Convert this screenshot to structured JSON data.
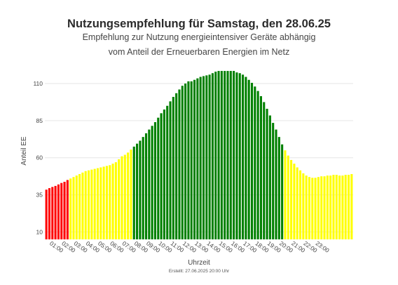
{
  "header": {
    "title": "Nutzungsempfehlung für Samstag, den 28.06.25",
    "subtitle_line1": "Empfehlung zur Nutzung energieintensiver Geräte abhängig",
    "subtitle_line2": "vom Anteil der Erneuerbaren Energien im Netz"
  },
  "footer": {
    "created": "Erstellt: 27.06.2025 20:00 Uhr"
  },
  "colors": {
    "red": "#ff0000",
    "yellow": "#ffff00",
    "green": "#008000",
    "grid": "#e6e6e6",
    "axis_text": "#444444"
  },
  "chart_data": {
    "type": "bar",
    "title": "",
    "xlabel": "Uhrzeit",
    "ylabel": "Anteil EE",
    "ylim": [
      5,
      119
    ],
    "yticks": [
      10,
      35,
      60,
      85,
      110
    ],
    "grid": true,
    "legend": "none",
    "x_tick_labels": [
      "01:00",
      "02:00",
      "03:00",
      "04:00",
      "05:00",
      "06:00",
      "07:00",
      "08:00",
      "09:00",
      "10:00",
      "11:00",
      "12:00",
      "13:00",
      "14:00",
      "15:00",
      "16:00",
      "17:00",
      "18:00",
      "19:00",
      "20:00",
      "21:00",
      "22:00",
      "23:00"
    ],
    "resolution": "15 min",
    "bars": [
      {
        "value": 38.5,
        "color": "red"
      },
      {
        "value": 39.5,
        "color": "red"
      },
      {
        "value": 40.3,
        "color": "red"
      },
      {
        "value": 41.0,
        "color": "red"
      },
      {
        "value": 42.0,
        "color": "red"
      },
      {
        "value": 43.0,
        "color": "red"
      },
      {
        "value": 43.8,
        "color": "red"
      },
      {
        "value": 45.0,
        "color": "red"
      },
      {
        "value": 46.0,
        "color": "yellow"
      },
      {
        "value": 47.0,
        "color": "yellow"
      },
      {
        "value": 48.0,
        "color": "yellow"
      },
      {
        "value": 49.0,
        "color": "yellow"
      },
      {
        "value": 50.0,
        "color": "yellow"
      },
      {
        "value": 51.0,
        "color": "yellow"
      },
      {
        "value": 51.5,
        "color": "yellow"
      },
      {
        "value": 52.0,
        "color": "yellow"
      },
      {
        "value": 52.5,
        "color": "yellow"
      },
      {
        "value": 53.0,
        "color": "yellow"
      },
      {
        "value": 53.5,
        "color": "yellow"
      },
      {
        "value": 54.0,
        "color": "yellow"
      },
      {
        "value": 54.5,
        "color": "yellow"
      },
      {
        "value": 55.0,
        "color": "yellow"
      },
      {
        "value": 56.0,
        "color": "yellow"
      },
      {
        "value": 57.0,
        "color": "yellow"
      },
      {
        "value": 59.0,
        "color": "yellow"
      },
      {
        "value": 61.0,
        "color": "yellow"
      },
      {
        "value": 62.0,
        "color": "yellow"
      },
      {
        "value": 63.5,
        "color": "yellow"
      },
      {
        "value": 65.5,
        "color": "yellow"
      },
      {
        "value": 67.5,
        "color": "green"
      },
      {
        "value": 69.5,
        "color": "green"
      },
      {
        "value": 71.5,
        "color": "green"
      },
      {
        "value": 74.0,
        "color": "green"
      },
      {
        "value": 76.5,
        "color": "green"
      },
      {
        "value": 79.0,
        "color": "green"
      },
      {
        "value": 81.5,
        "color": "green"
      },
      {
        "value": 84.0,
        "color": "green"
      },
      {
        "value": 87.0,
        "color": "green"
      },
      {
        "value": 90.0,
        "color": "green"
      },
      {
        "value": 92.5,
        "color": "green"
      },
      {
        "value": 95.0,
        "color": "green"
      },
      {
        "value": 98.0,
        "color": "green"
      },
      {
        "value": 101.0,
        "color": "green"
      },
      {
        "value": 103.5,
        "color": "green"
      },
      {
        "value": 106.0,
        "color": "green"
      },
      {
        "value": 108.5,
        "color": "green"
      },
      {
        "value": 110.0,
        "color": "green"
      },
      {
        "value": 111.5,
        "color": "green"
      },
      {
        "value": 111.5,
        "color": "green"
      },
      {
        "value": 112.5,
        "color": "green"
      },
      {
        "value": 113.5,
        "color": "green"
      },
      {
        "value": 114.5,
        "color": "green"
      },
      {
        "value": 115.0,
        "color": "green"
      },
      {
        "value": 115.5,
        "color": "green"
      },
      {
        "value": 116.0,
        "color": "green"
      },
      {
        "value": 117.0,
        "color": "green"
      },
      {
        "value": 118.0,
        "color": "green"
      },
      {
        "value": 118.5,
        "color": "green"
      },
      {
        "value": 118.5,
        "color": "green"
      },
      {
        "value": 118.5,
        "color": "green"
      },
      {
        "value": 118.5,
        "color": "green"
      },
      {
        "value": 118.5,
        "color": "green"
      },
      {
        "value": 118.5,
        "color": "green"
      },
      {
        "value": 117.5,
        "color": "green"
      },
      {
        "value": 117.0,
        "color": "green"
      },
      {
        "value": 116.0,
        "color": "green"
      },
      {
        "value": 114.5,
        "color": "green"
      },
      {
        "value": 112.5,
        "color": "green"
      },
      {
        "value": 110.5,
        "color": "green"
      },
      {
        "value": 108.0,
        "color": "green"
      },
      {
        "value": 105.0,
        "color": "green"
      },
      {
        "value": 101.5,
        "color": "green"
      },
      {
        "value": 97.5,
        "color": "green"
      },
      {
        "value": 93.0,
        "color": "green"
      },
      {
        "value": 88.5,
        "color": "green"
      },
      {
        "value": 83.5,
        "color": "green"
      },
      {
        "value": 79.0,
        "color": "green"
      },
      {
        "value": 74.0,
        "color": "green"
      },
      {
        "value": 69.0,
        "color": "green"
      },
      {
        "value": 65.0,
        "color": "yellow"
      },
      {
        "value": 61.5,
        "color": "yellow"
      },
      {
        "value": 58.5,
        "color": "yellow"
      },
      {
        "value": 56.0,
        "color": "yellow"
      },
      {
        "value": 53.5,
        "color": "yellow"
      },
      {
        "value": 51.5,
        "color": "yellow"
      },
      {
        "value": 49.5,
        "color": "yellow"
      },
      {
        "value": 48.0,
        "color": "yellow"
      },
      {
        "value": 47.0,
        "color": "yellow"
      },
      {
        "value": 46.5,
        "color": "yellow"
      },
      {
        "value": 46.5,
        "color": "yellow"
      },
      {
        "value": 47.0,
        "color": "yellow"
      },
      {
        "value": 47.5,
        "color": "yellow"
      },
      {
        "value": 47.5,
        "color": "yellow"
      },
      {
        "value": 48.0,
        "color": "yellow"
      },
      {
        "value": 48.0,
        "color": "yellow"
      },
      {
        "value": 48.5,
        "color": "yellow"
      },
      {
        "value": 48.5,
        "color": "yellow"
      },
      {
        "value": 48.0,
        "color": "yellow"
      },
      {
        "value": 48.0,
        "color": "yellow"
      },
      {
        "value": 48.5,
        "color": "yellow"
      },
      {
        "value": 48.5,
        "color": "yellow"
      },
      {
        "value": 49.0,
        "color": "yellow"
      }
    ]
  }
}
